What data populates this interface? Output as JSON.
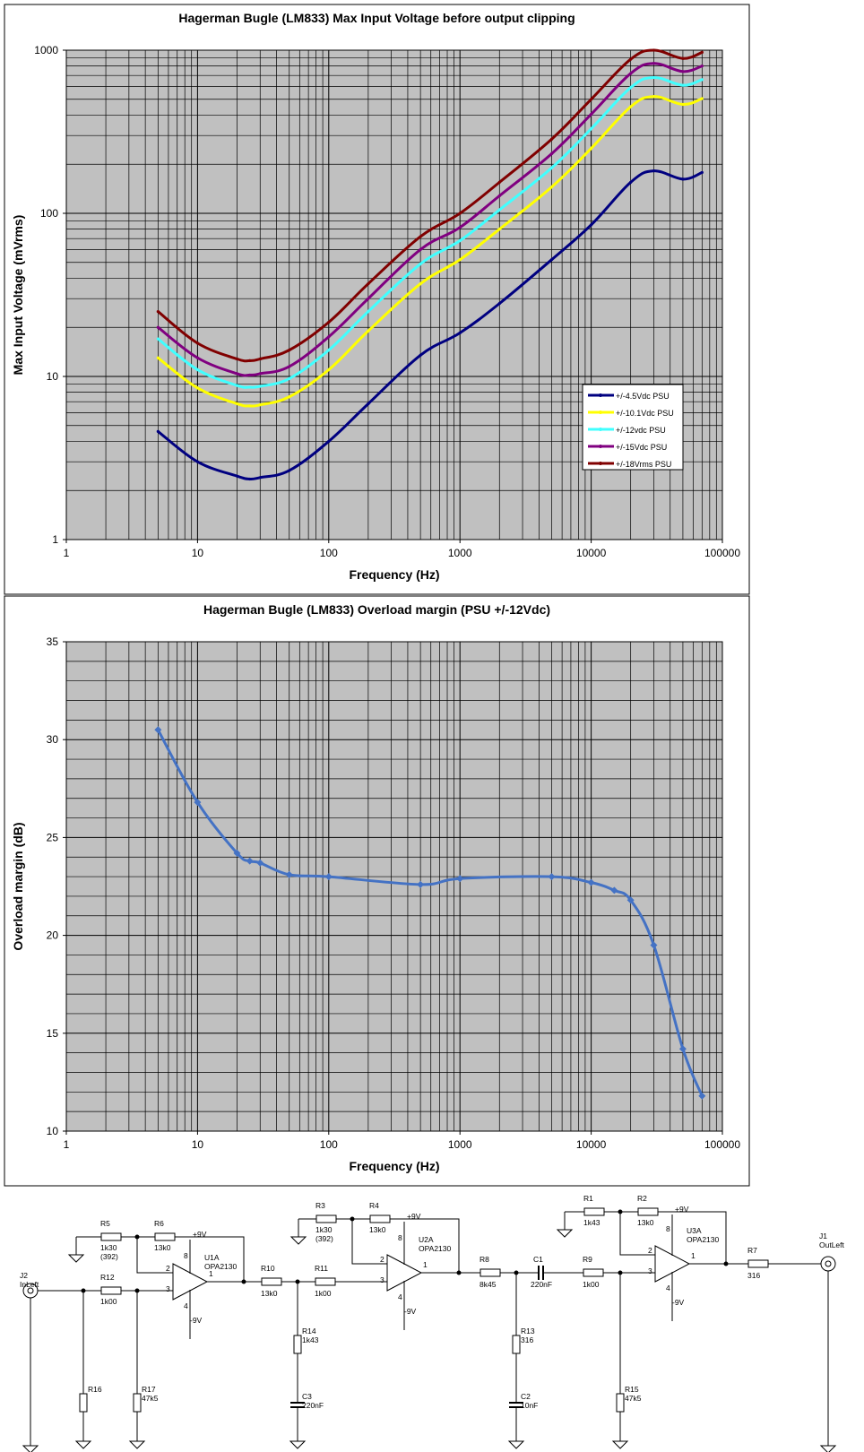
{
  "chart_data": [
    {
      "type": "line",
      "title": "Hagerman Bugle (LM833) Max Input Voltage before output clipping",
      "xlabel": "Frequency (Hz)",
      "ylabel": "Max Input Voltage (mVrms)",
      "x_scale": "log",
      "y_scale": "log",
      "xlim": [
        1,
        100000
      ],
      "ylim": [
        1,
        1000
      ],
      "x_ticks": [
        "1",
        "10",
        "100",
        "1000",
        "10000",
        "100000"
      ],
      "y_ticks": [
        "1",
        "10",
        "100",
        "1000"
      ],
      "grid": true,
      "legend_position": "right-middle",
      "series": [
        {
          "name": "+/-4.5Vdc PSU",
          "color": "#000080",
          "x": [
            5,
            10,
            20,
            25,
            30,
            50,
            100,
            200,
            500,
            1000,
            2000,
            5000,
            10000,
            20000,
            30000,
            50000,
            70000
          ],
          "y": [
            4.6,
            3.0,
            2.45,
            2.35,
            2.4,
            2.65,
            4.0,
            6.8,
            13.5,
            18.5,
            28,
            52,
            85,
            155,
            182,
            162,
            178
          ]
        },
        {
          "name": "+/-10.1Vdc PSU",
          "color": "#ffff00",
          "x": [
            5,
            10,
            20,
            25,
            30,
            50,
            100,
            200,
            500,
            1000,
            2000,
            5000,
            10000,
            20000,
            30000,
            50000,
            70000
          ],
          "y": [
            13,
            8.5,
            6.8,
            6.6,
            6.7,
            7.5,
            11,
            19,
            37,
            52,
            80,
            145,
            250,
            450,
            520,
            465,
            505
          ]
        },
        {
          "name": "+/-12vdc PSU",
          "color": "#40ffff",
          "x": [
            5,
            10,
            20,
            25,
            30,
            50,
            100,
            200,
            500,
            1000,
            2000,
            5000,
            10000,
            20000,
            30000,
            50000,
            70000
          ],
          "y": [
            17,
            11,
            8.8,
            8.6,
            8.7,
            9.7,
            14.5,
            25,
            49,
            68,
            105,
            190,
            330,
            590,
            680,
            610,
            660
          ]
        },
        {
          "name": "+/-15Vdc PSU",
          "color": "#800080",
          "x": [
            5,
            10,
            20,
            25,
            30,
            50,
            100,
            200,
            500,
            1000,
            2000,
            5000,
            10000,
            20000,
            30000,
            50000,
            70000
          ],
          "y": [
            20,
            13,
            10.4,
            10.2,
            10.4,
            11.5,
            17.5,
            30,
            60,
            82,
            128,
            232,
            405,
            720,
            830,
            740,
            800
          ]
        },
        {
          "name": "+/-18Vrms PSU",
          "color": "#800000",
          "x": [
            5,
            10,
            20,
            25,
            30,
            50,
            100,
            200,
            500,
            1000,
            2000,
            5000,
            10000,
            20000,
            30000,
            50000,
            70000
          ],
          "y": [
            25,
            16,
            12.8,
            12.5,
            12.8,
            14.5,
            21.5,
            37,
            72,
            100,
            155,
            285,
            500,
            880,
            1000,
            890,
            970
          ]
        }
      ]
    },
    {
      "type": "line",
      "title": "Hagerman Bugle (LM833) Overload margin (PSU +/-12Vdc)",
      "xlabel": "Frequency (Hz)",
      "ylabel": "Overload margin (dB)",
      "x_scale": "log",
      "y_scale": "linear",
      "xlim": [
        1,
        100000
      ],
      "ylim": [
        10,
        35
      ],
      "x_ticks": [
        "1",
        "10",
        "100",
        "1000",
        "10000",
        "100000"
      ],
      "y_ticks": [
        "10",
        "15",
        "20",
        "25",
        "30",
        "35"
      ],
      "grid": true,
      "series": [
        {
          "color": "#4472c4",
          "x": [
            5,
            10,
            20,
            25,
            30,
            50,
            100,
            500,
            1000,
            5000,
            10000,
            15000,
            20000,
            30000,
            50000,
            70000
          ],
          "y": [
            30.5,
            26.8,
            24.2,
            23.8,
            23.7,
            23.1,
            23.0,
            22.6,
            22.9,
            23.0,
            22.7,
            22.3,
            21.8,
            19.5,
            14.2,
            11.8
          ]
        }
      ]
    }
  ],
  "schematic": {
    "labels": [
      {
        "text": "R5"
      },
      {
        "text": "1k30"
      },
      {
        "text": "(392)"
      },
      {
        "text": "R6"
      },
      {
        "text": "13k0"
      },
      {
        "text": "+9V"
      },
      {
        "text": "8"
      },
      {
        "text": "U1A"
      },
      {
        "text": "OPA2130"
      },
      {
        "text": "2"
      },
      {
        "text": "3"
      },
      {
        "text": "1"
      },
      {
        "text": "4"
      },
      {
        "text": "-9V"
      },
      {
        "text": "J2"
      },
      {
        "text": "InLeft"
      },
      {
        "text": "R12"
      },
      {
        "text": "1k00"
      },
      {
        "text": "R16"
      },
      {
        "text": "R17"
      },
      {
        "text": "47k5"
      },
      {
        "text": "R10"
      },
      {
        "text": "13k0"
      },
      {
        "text": "R11"
      },
      {
        "text": "1k00"
      },
      {
        "text": "R14"
      },
      {
        "text": "1k43"
      },
      {
        "text": "C3"
      },
      {
        "text": "220nF"
      },
      {
        "text": "R3"
      },
      {
        "text": "1k30"
      },
      {
        "text": "(392)"
      },
      {
        "text": "R4"
      },
      {
        "text": "13k0"
      },
      {
        "text": "+9V"
      },
      {
        "text": "8"
      },
      {
        "text": "U2A"
      },
      {
        "text": "OPA2130"
      },
      {
        "text": "2"
      },
      {
        "text": "3"
      },
      {
        "text": "1"
      },
      {
        "text": "4"
      },
      {
        "text": "-9V"
      },
      {
        "text": "R8"
      },
      {
        "text": "8k45"
      },
      {
        "text": "C1"
      },
      {
        "text": "220nF"
      },
      {
        "text": "R13"
      },
      {
        "text": "316"
      },
      {
        "text": "C2"
      },
      {
        "text": "10nF"
      },
      {
        "text": "R1"
      },
      {
        "text": "1k43"
      },
      {
        "text": "R2"
      },
      {
        "text": "13k0"
      },
      {
        "text": "+9V"
      },
      {
        "text": "8"
      },
      {
        "text": "U3A"
      },
      {
        "text": "OPA2130"
      },
      {
        "text": "2"
      },
      {
        "text": "3"
      },
      {
        "text": "1"
      },
      {
        "text": "4"
      },
      {
        "text": "-9V"
      },
      {
        "text": "R9"
      },
      {
        "text": "1k00"
      },
      {
        "text": "R15"
      },
      {
        "text": "47k5"
      },
      {
        "text": "R7"
      },
      {
        "text": "316"
      },
      {
        "text": "J1"
      },
      {
        "text": "OutLeft"
      }
    ]
  }
}
